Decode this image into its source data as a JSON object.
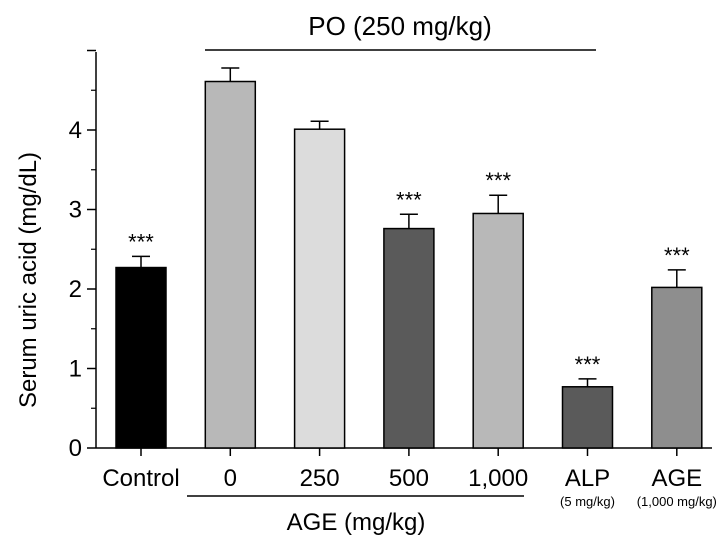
{
  "chart_data": {
    "type": "bar",
    "ylabel": "Serum uric acid (mg/dL)",
    "ylim": [
      0,
      5
    ],
    "yticks": [
      "0",
      "1",
      "2",
      "3",
      "4"
    ],
    "categories": [
      {
        "label": "Control",
        "sublabel": "",
        "value": 2.27,
        "error": 0.14,
        "significance": "***",
        "color": "#000000"
      },
      {
        "label": "0",
        "sublabel": "",
        "value": 4.61,
        "error": 0.17,
        "significance": "",
        "color": "#b8b8b8"
      },
      {
        "label": "250",
        "sublabel": "",
        "value": 4.01,
        "error": 0.1,
        "significance": "",
        "color": "#dcdcdc"
      },
      {
        "label": "500",
        "sublabel": "",
        "value": 2.76,
        "error": 0.18,
        "significance": "***",
        "color": "#5a5a5a"
      },
      {
        "label": "1,000",
        "sublabel": "",
        "value": 2.95,
        "error": 0.23,
        "significance": "***",
        "color": "#b8b8b8"
      },
      {
        "label": "ALP",
        "sublabel": "(5 mg/kg)",
        "value": 0.77,
        "error": 0.1,
        "significance": "***",
        "color": "#5a5a5a"
      },
      {
        "label": "AGE",
        "sublabel": "(1,000 mg/kg)",
        "value": 2.02,
        "error": 0.22,
        "significance": "***",
        "color": "#8e8e8e"
      }
    ],
    "top_group_label": "PO (250 mg/kg)",
    "bottom_group_label": "AGE (mg/kg)"
  }
}
